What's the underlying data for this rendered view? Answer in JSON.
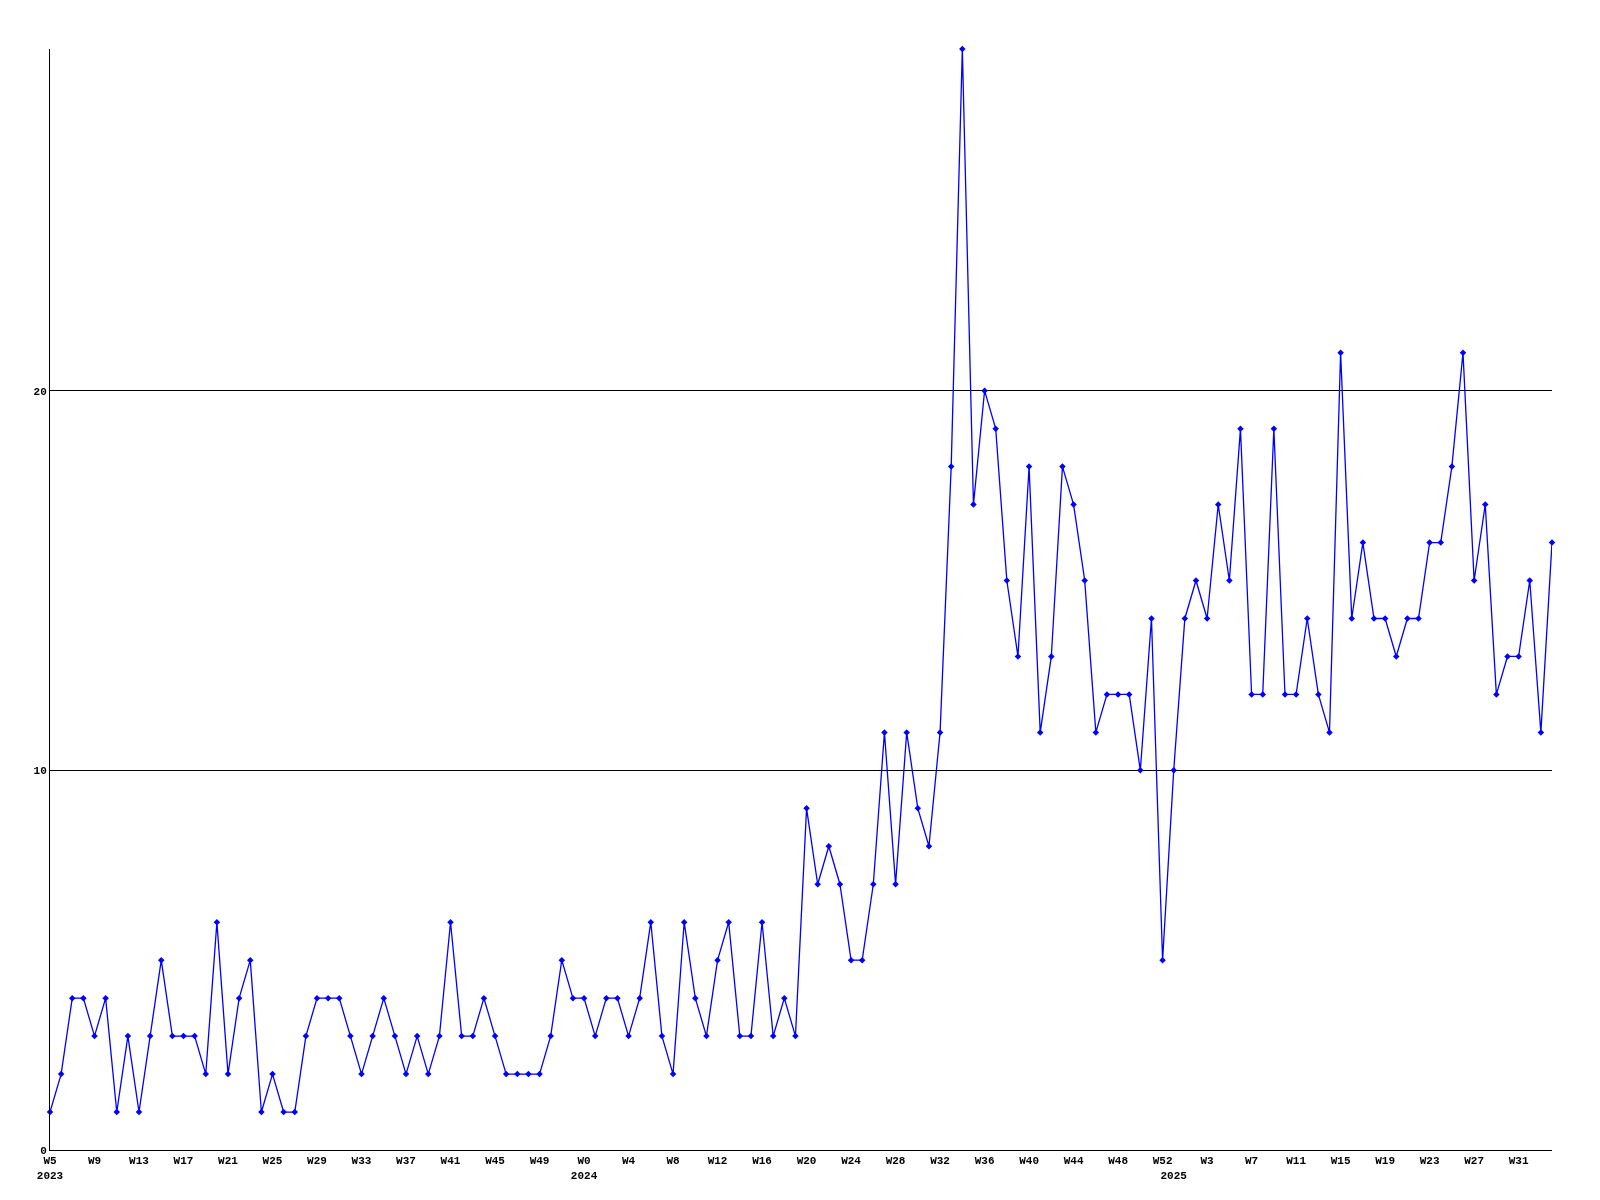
{
  "chart_data": {
    "type": "line",
    "categories": [
      "W5\n2023",
      null,
      null,
      null,
      "W9",
      null,
      null,
      null,
      "W13",
      null,
      null,
      null,
      "W17",
      null,
      null,
      null,
      "W21",
      null,
      null,
      null,
      "W25",
      null,
      null,
      null,
      "W29",
      null,
      null,
      null,
      "W33",
      null,
      null,
      null,
      "W37",
      null,
      null,
      null,
      "W41",
      null,
      null,
      null,
      "W45",
      null,
      null,
      null,
      "W49",
      null,
      null,
      null,
      "W0\n2024",
      null,
      null,
      null,
      "W4",
      null,
      null,
      null,
      "W8",
      null,
      null,
      null,
      "W12",
      null,
      null,
      null,
      "W16",
      null,
      null,
      null,
      "W20",
      null,
      null,
      null,
      "W24",
      null,
      null,
      null,
      "W28",
      null,
      null,
      null,
      "W32",
      null,
      null,
      null,
      "W36",
      null,
      null,
      null,
      "W40",
      null,
      null,
      null,
      "W44",
      null,
      null,
      null,
      "W48",
      null,
      null,
      null,
      "W52",
      "\n2025",
      null,
      null,
      "W3",
      null,
      null,
      null,
      "W7",
      null,
      null,
      null,
      "W11",
      null,
      null,
      null,
      "W15",
      null,
      null,
      null,
      "W19",
      null,
      null,
      null,
      "W23",
      null,
      null,
      null,
      "W27",
      null,
      null,
      null,
      "W31",
      null,
      null,
      null
    ],
    "series": [
      {
        "color": "#0000ff",
        "values": [
          1,
          2,
          4,
          4,
          3,
          4,
          1,
          3,
          1,
          3,
          5,
          3,
          3,
          3,
          2,
          6,
          2,
          4,
          5,
          1,
          2,
          1,
          1,
          3,
          4,
          4,
          4,
          3,
          2,
          3,
          4,
          3,
          2,
          3,
          2,
          3,
          6,
          3,
          3,
          4,
          3,
          2,
          2,
          2,
          2,
          3,
          5,
          4,
          4,
          3,
          4,
          4,
          3,
          4,
          6,
          3,
          2,
          6,
          4,
          3,
          5,
          6,
          3,
          3,
          6,
          3,
          4,
          3,
          9,
          7,
          8,
          7,
          5,
          5,
          7,
          11,
          7,
          11,
          9,
          8,
          11,
          18,
          29,
          17,
          20,
          19,
          15,
          13,
          18,
          11,
          13,
          18,
          17,
          15,
          11,
          12,
          12,
          12,
          10,
          14,
          5,
          10,
          14,
          15,
          14,
          17,
          15,
          19,
          12,
          12,
          19,
          12,
          12,
          14,
          12,
          11,
          21,
          14,
          16,
          14,
          14,
          13,
          14,
          14,
          16,
          16,
          18,
          21,
          15,
          17,
          12,
          13,
          13,
          15,
          11,
          16
        ]
      }
    ],
    "ylim": [
      0,
      29
    ],
    "yticks": [
      0,
      10,
      20
    ],
    "grid": "y",
    "marker": "diamond",
    "line_style": "solid"
  }
}
